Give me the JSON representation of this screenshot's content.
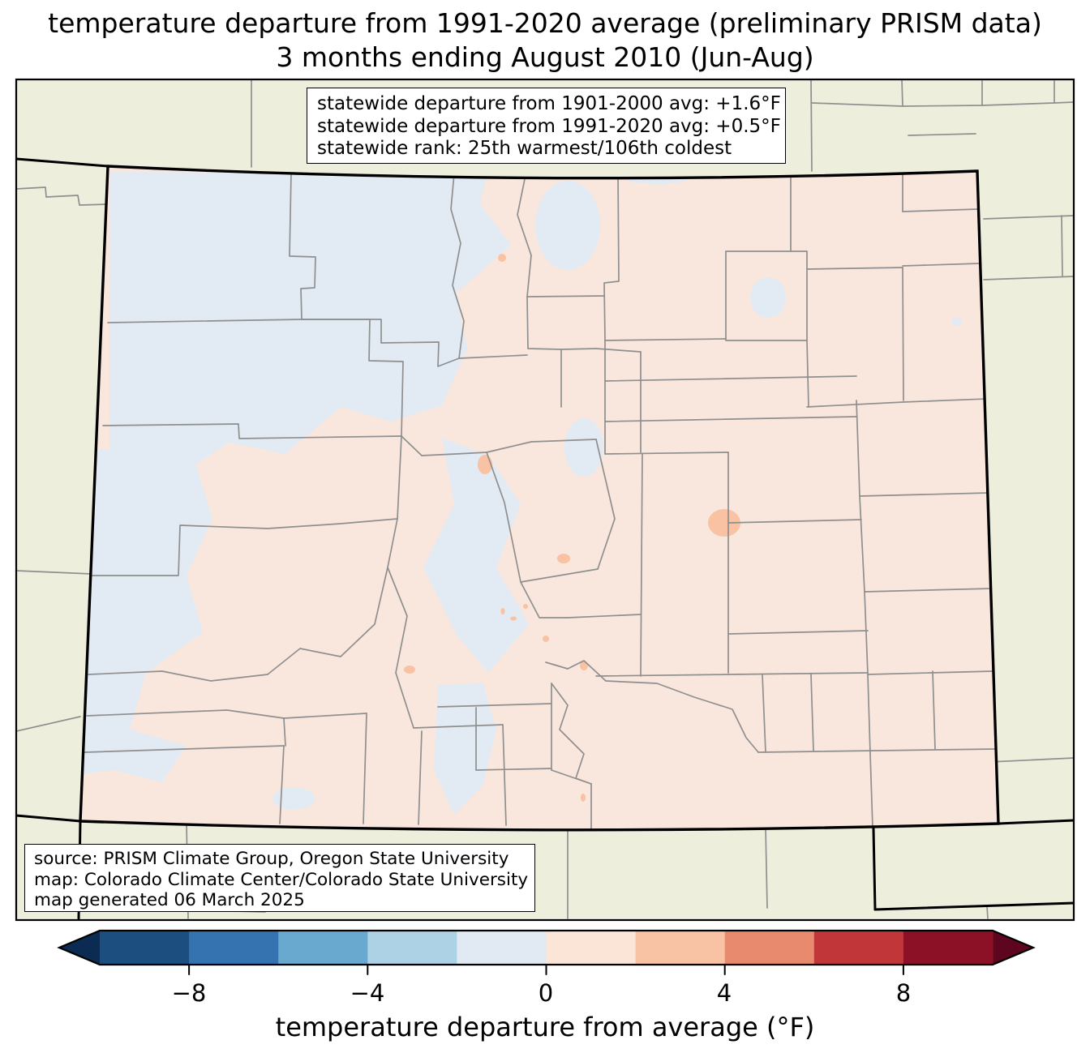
{
  "title": {
    "line1": "temperature departure from 1991-2020 average (preliminary PRISM data)",
    "line2": "3 months ending August 2010 (Jun-Aug)"
  },
  "stats_box": {
    "lines": [
      "statewide departure from 1901-2000 avg: +1.6°F",
      "statewide departure from 1991-2020 avg: +0.5°F",
      "statewide rank: 25th warmest/106th coldest"
    ]
  },
  "source_box": {
    "lines": [
      "source: PRISM Climate Group, Oregon State University",
      "map: Colorado Climate Center/Colorado State University",
      "map generated 06 March 2025"
    ]
  },
  "colorbar": {
    "label": "temperature departure from average (°F)",
    "ticks": [
      {
        "value": -8,
        "label": "−8"
      },
      {
        "value": -4,
        "label": "−4"
      },
      {
        "value": 0,
        "label": "0"
      },
      {
        "value": 4,
        "label": "4"
      },
      {
        "value": 8,
        "label": "8"
      }
    ],
    "range": [
      -10,
      10
    ],
    "bin_size": 2,
    "segment_colors": [
      "#1c4e80",
      "#3473b0",
      "#69a8cf",
      "#add1e5",
      "#e1eaf2",
      "#fbe5d7",
      "#f7c3a4",
      "#e78a6d",
      "#c13639",
      "#8c1127"
    ],
    "under_arrow_color": "#0c2b52",
    "over_arrow_color": "#5e0620"
  },
  "map": {
    "region": "Colorado",
    "colors": {
      "out_of_state": "#eeeedd",
      "state_fill_warm": "#f9e7de",
      "state_fill_cool": "#e2eaf3",
      "warm_spot": "#f8c2a3",
      "county_line": "#8f8f8f",
      "state_border": "#000000",
      "frame": "#000000"
    }
  }
}
